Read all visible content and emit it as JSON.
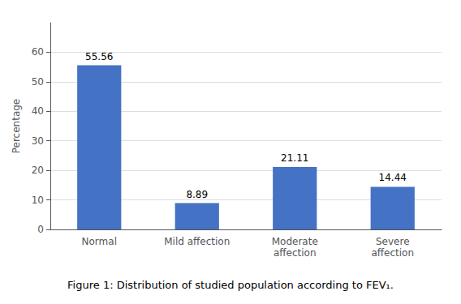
{
  "chart_data": {
    "type": "bar",
    "title": "Figure 1: Distribution of studied population according to FEV₁.",
    "categories": [
      "Normal",
      "Mild affection",
      "Moderate\naffection",
      "Severe\naffection"
    ],
    "values": [
      55.56,
      8.89,
      21.11,
      14.44
    ],
    "color": "#4472C4",
    "ylabel": "Percentage",
    "ylim": [
      0,
      70
    ],
    "yticks": [
      0,
      10,
      20,
      30,
      40,
      50,
      60
    ],
    "grid": true,
    "data_labels": true
  }
}
